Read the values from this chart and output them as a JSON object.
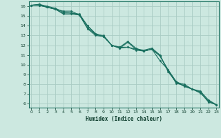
{
  "title": "",
  "xlabel": "Humidex (Indice chaleur)",
  "ylabel": "",
  "bg_color": "#cce8e0",
  "grid_color": "#aaccc4",
  "line_color": "#1a7060",
  "marker_color": "#1a7060",
  "x_ticks": [
    0,
    1,
    2,
    3,
    4,
    5,
    6,
    7,
    8,
    9,
    10,
    11,
    12,
    13,
    14,
    15,
    16,
    17,
    18,
    19,
    20,
    21,
    22,
    23
  ],
  "y_ticks": [
    6,
    7,
    8,
    9,
    10,
    11,
    12,
    13,
    14,
    15,
    16
  ],
  "xlim": [
    -0.3,
    23.3
  ],
  "ylim": [
    5.6,
    16.5
  ],
  "series": [
    [
      16.1,
      16.2,
      16.0,
      15.8,
      15.4,
      15.3,
      15.2,
      14.0,
      13.1,
      13.0,
      12.0,
      11.8,
      12.4,
      11.7,
      11.4,
      11.6,
      10.4,
      9.5,
      8.3,
      7.8,
      7.5,
      7.2,
      6.2,
      5.9
    ],
    [
      16.1,
      16.2,
      15.9,
      15.7,
      15.5,
      15.5,
      15.1,
      13.8,
      13.1,
      12.9,
      12.0,
      11.7,
      12.3,
      11.6,
      11.5,
      11.7,
      11.0,
      9.3,
      8.2,
      8.0,
      7.5,
      7.3,
      6.4,
      5.9
    ],
    [
      16.1,
      16.1,
      15.9,
      15.7,
      15.2,
      15.2,
      15.1,
      14.0,
      13.2,
      12.9,
      12.0,
      11.8,
      11.8,
      11.6,
      11.4,
      11.6,
      10.9,
      9.5,
      8.1,
      7.9,
      7.5,
      7.1,
      6.3,
      5.9
    ],
    [
      16.1,
      16.1,
      15.9,
      15.7,
      15.3,
      15.3,
      15.1,
      13.7,
      13.0,
      12.9,
      12.0,
      11.7,
      11.8,
      11.5,
      11.4,
      11.6,
      10.9,
      9.4,
      8.2,
      7.8,
      7.5,
      7.2,
      6.2,
      5.9
    ]
  ]
}
